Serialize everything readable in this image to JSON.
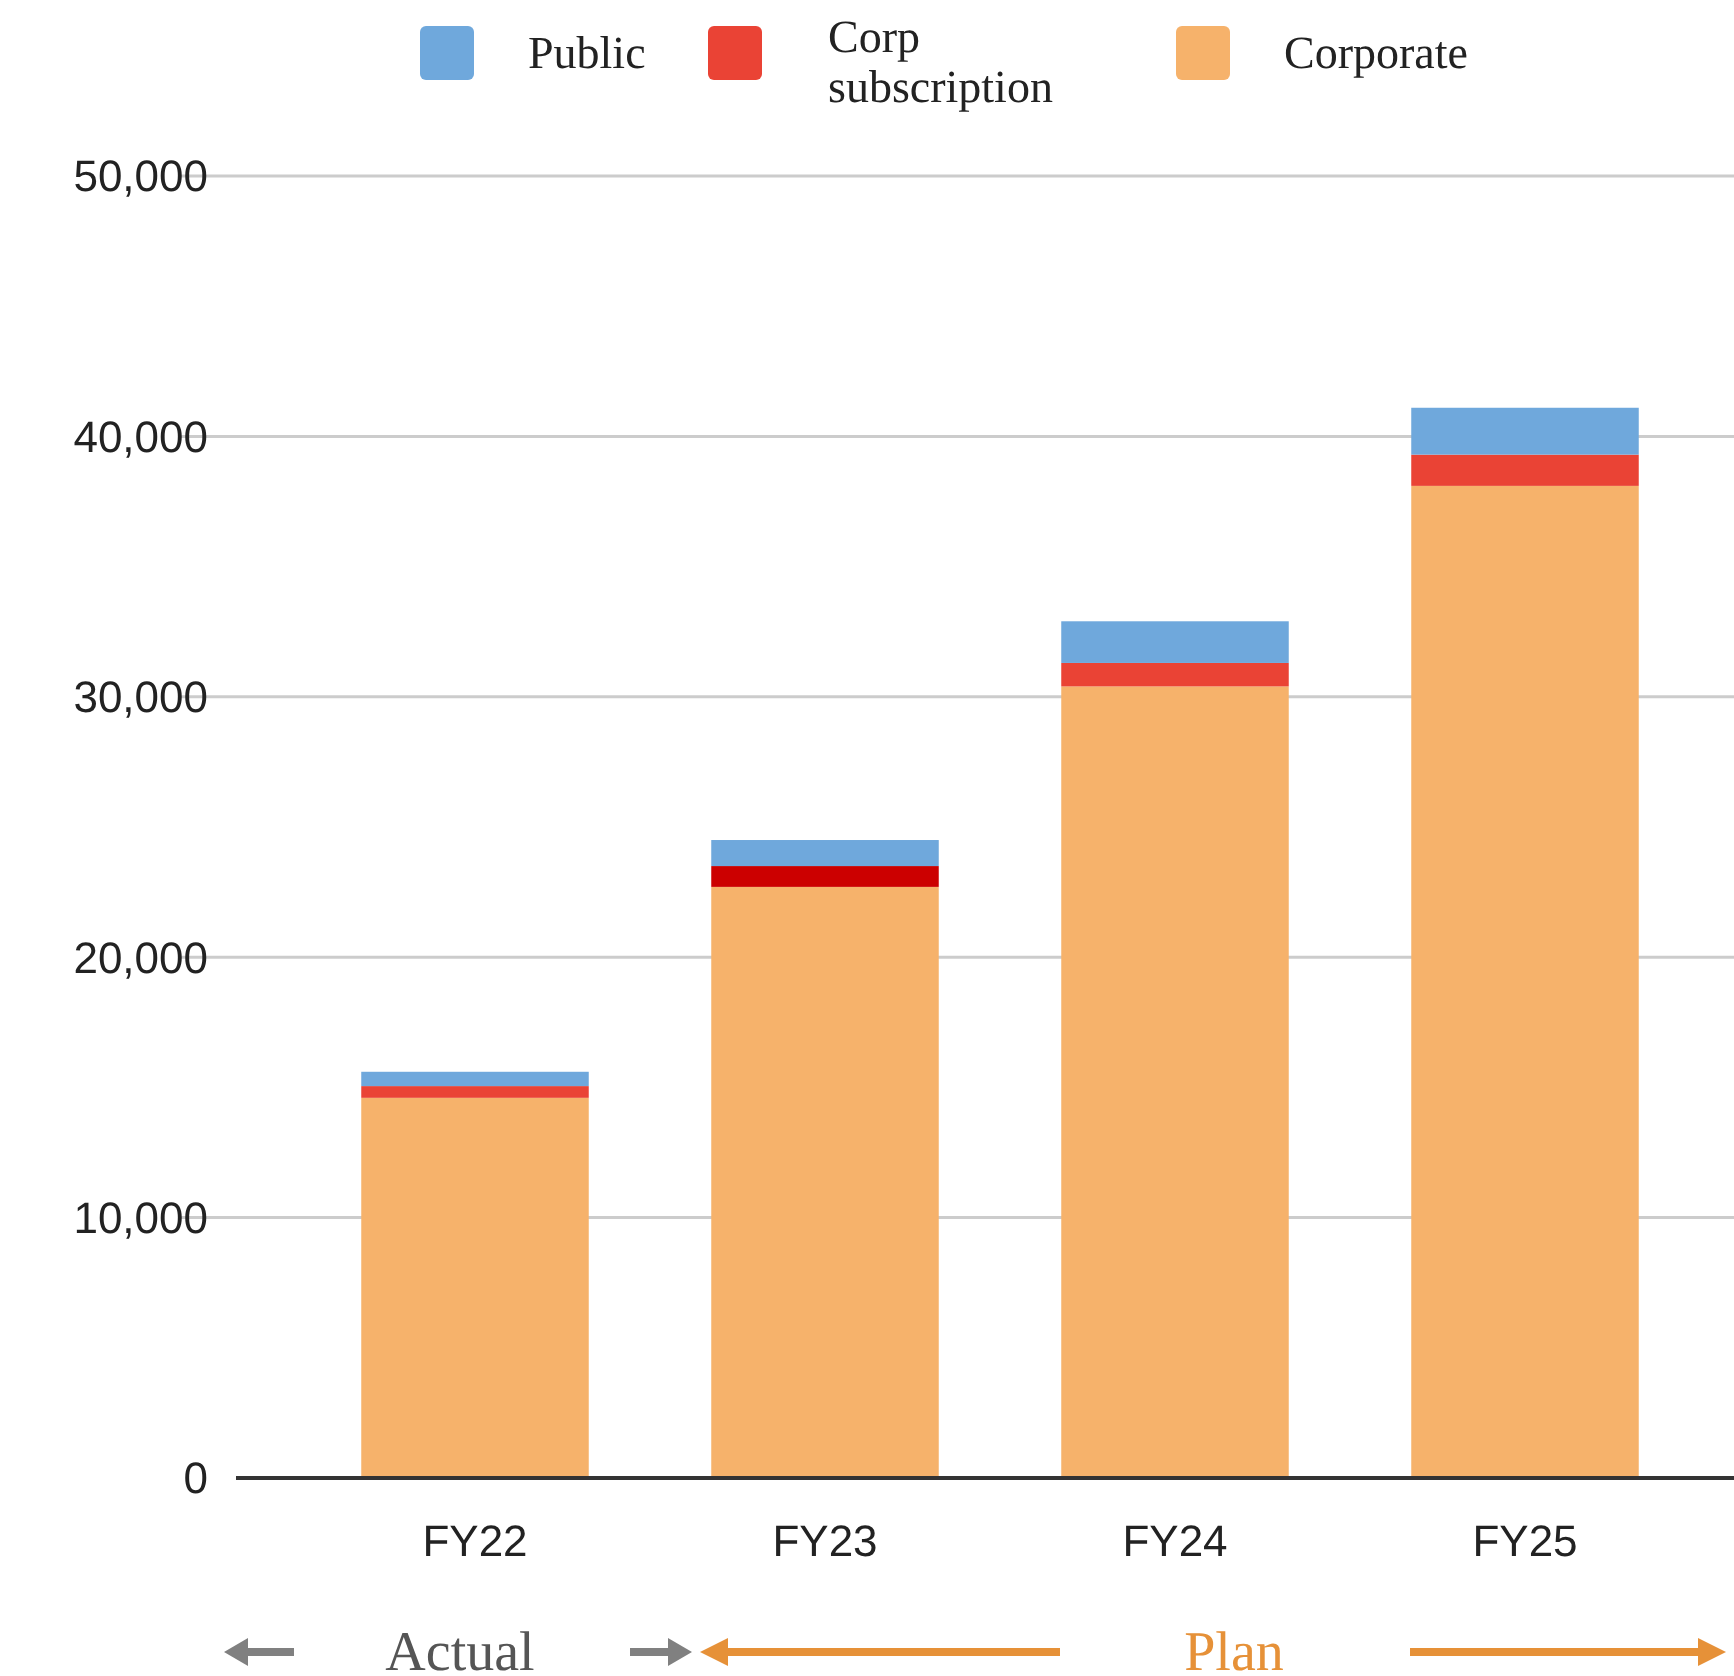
{
  "chart_data": {
    "type": "bar",
    "stacked": true,
    "categories": [
      "FY22",
      "FY23",
      "FY24",
      "FY25"
    ],
    "series": [
      {
        "name": "Corporate",
        "color": "#f6b26b",
        "values": [
          14600,
          22700,
          30400,
          38100
        ]
      },
      {
        "name": "Corp subscription",
        "color": "#ea4335",
        "colors": [
          "#ea4335",
          "#cc0000",
          "#ea4335",
          "#ea4335"
        ],
        "values": [
          450,
          800,
          900,
          1200
        ]
      },
      {
        "name": "Public",
        "color": "#6fa8dc",
        "values": [
          550,
          1000,
          1600,
          1800
        ]
      }
    ],
    "ylim": [
      0,
      50000
    ],
    "yticks": [
      {
        "value": 0,
        "label": "0"
      },
      {
        "value": 10000,
        "label": "10,000"
      },
      {
        "value": 20000,
        "label": "20,000"
      },
      {
        "value": 30000,
        "label": "30,000"
      },
      {
        "value": 40000,
        "label": "40,000"
      },
      {
        "value": 50000,
        "label": "50,000"
      }
    ],
    "grid": "y",
    "legend": "top",
    "annotations": [
      "Actual",
      "Plan"
    ]
  }
}
